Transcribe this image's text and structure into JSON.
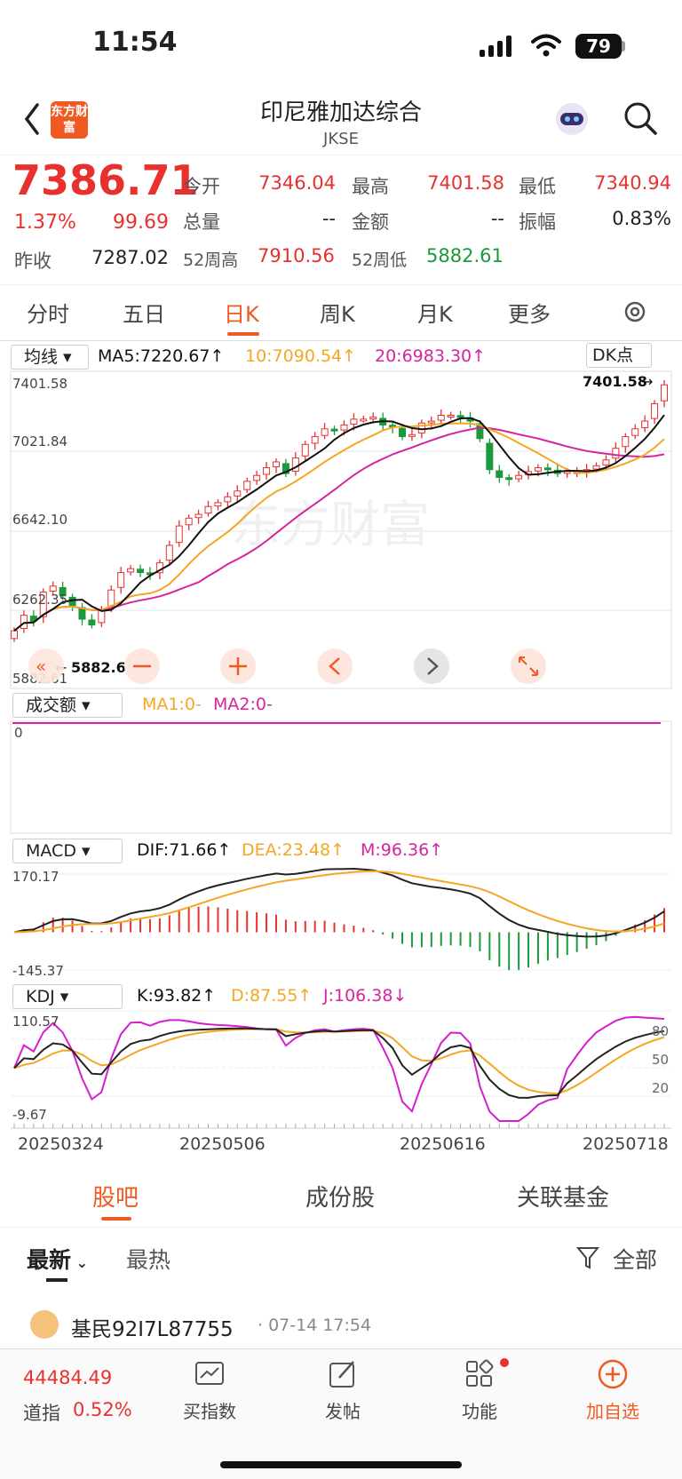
{
  "status": {
    "time": "11:54",
    "battery": "79"
  },
  "header": {
    "title": "印尼雅加达综合",
    "code": "JKSE",
    "logo": "东方财富"
  },
  "quote": {
    "price": "7386.71",
    "change_pct": "1.37%",
    "change": "99.69",
    "prev_close_label": "昨收",
    "prev_close": "7287.02",
    "open_label": "今开",
    "open": "7346.04",
    "high_label": "最高",
    "high": "7401.58",
    "low_label": "最低",
    "low": "7340.94",
    "volume_label": "总量",
    "volume": "--",
    "amount_label": "金额",
    "amount": "--",
    "amplitude_label": "振幅",
    "amplitude": "0.83%",
    "w52_high_label": "52周高",
    "w52_high": "7910.56",
    "w52_low_label": "52周低",
    "w52_low": "5882.61"
  },
  "tabs": [
    "分时",
    "五日",
    "日K",
    "周K",
    "月K",
    "更多"
  ],
  "active_tab": "日K",
  "kline": {
    "selector": "均线",
    "ma5": "MA5:7220.67↑",
    "ma10": "10:7090.54↑",
    "ma20": "20:6983.30↑",
    "dk_button": "DK点",
    "y_labels": [
      "7401.58",
      "7021.84",
      "6642.10",
      "6262.35",
      "5882.61"
    ],
    "high_marker": "7401.58",
    "low_marker": "5882.61",
    "watermark": "东方财富"
  },
  "volume": {
    "selector": "成交额",
    "ma1": "MA1:0-",
    "ma2": "MA2:0-",
    "zero": "0"
  },
  "macd": {
    "selector": "MACD",
    "dif": "DIF:71.66↑",
    "dea": "DEA:23.48↑",
    "m": "M:96.36↑",
    "top": "170.17",
    "bottom": "-145.37"
  },
  "kdj": {
    "selector": "KDJ",
    "k": "K:93.82↑",
    "d": "D:87.55↑",
    "j": "J:106.38↓",
    "top": "110.57",
    "bottom": "-9.67",
    "levels": [
      "80",
      "50",
      "20"
    ]
  },
  "dates": [
    "20250324",
    "20250506",
    "20250616",
    "20250718"
  ],
  "bottom_tabs": [
    "股吧",
    "成份股",
    "关联基金"
  ],
  "feed": {
    "sort_latest": "最新",
    "sort_hot": "最热",
    "filter": "全部",
    "post_user": "基民92I7L87755",
    "post_time": "07-14 17:54"
  },
  "bottom_bar": {
    "index_value": "44484.49",
    "index_name": "道指",
    "index_change": "0.52%",
    "items": [
      "买指数",
      "发帖",
      "功能",
      "加自选"
    ]
  },
  "colors": {
    "up": "#e8312f",
    "down": "#1a9a3a",
    "accent": "#f05a22",
    "ma5": "#111111",
    "ma10": "#f5a623",
    "ma20": "#d6249f"
  },
  "chart_data": {
    "type": "candlestick",
    "ylim": [
      5882.61,
      7401.58
    ],
    "closes": [
      6120,
      6200,
      6170,
      6320,
      6350,
      6300,
      6250,
      6180,
      6150,
      6230,
      6330,
      6420,
      6440,
      6420,
      6410,
      6470,
      6560,
      6660,
      6700,
      6720,
      6760,
      6780,
      6810,
      6840,
      6890,
      6920,
      6960,
      6990,
      6930,
      7010,
      7080,
      7120,
      7160,
      7150,
      7180,
      7210,
      7210,
      7220,
      7180,
      7170,
      7120,
      7130,
      7190,
      7200,
      7230,
      7230,
      7220,
      7200,
      7110,
      6950,
      6910,
      6900,
      6920,
      6940,
      6960,
      6950,
      6930,
      6940,
      6940,
      6950,
      6970,
      7000,
      7060,
      7120,
      7160,
      7200,
      7290,
      7386.71
    ],
    "ma5_end": 7220.67,
    "ma10_end": 7090.54,
    "ma20_end": 6983.3
  }
}
